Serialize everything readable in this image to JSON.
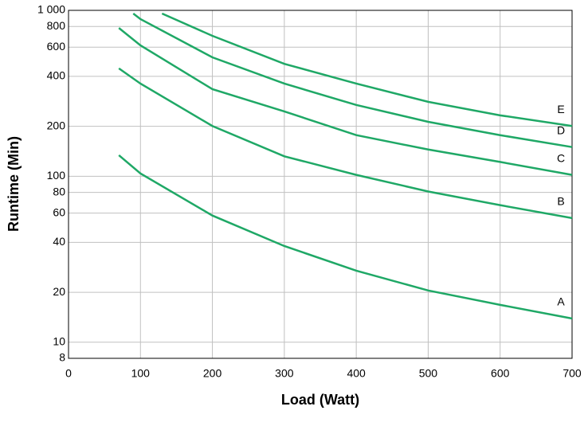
{
  "chart_data": {
    "type": "line",
    "xlabel": "Load (Watt)",
    "ylabel": "Runtime (Min)",
    "xlim": [
      0,
      700
    ],
    "xticks": [
      0,
      100,
      200,
      300,
      400,
      500,
      600,
      700
    ],
    "ylim": [
      8,
      1000
    ],
    "log_y": true,
    "yticks": [
      8,
      10,
      20,
      40,
      60,
      80,
      100,
      200,
      400,
      600,
      800,
      {
        "value": 1000,
        "label": "1 000"
      }
    ],
    "grid": true,
    "series": [
      {
        "name": "A",
        "color": "#1fa866",
        "x": [
          70,
          100,
          200,
          300,
          400,
          500,
          600,
          700
        ],
        "values": [
          134,
          104,
          58,
          38,
          27,
          20.5,
          16.8,
          13.9
        ]
      },
      {
        "name": "B",
        "color": "#1fa866",
        "x": [
          70,
          100,
          200,
          300,
          400,
          500,
          600,
          700
        ],
        "values": [
          447,
          362,
          201,
          132,
          102,
          81,
          67,
          56
        ]
      },
      {
        "name": "C",
        "color": "#1fa866",
        "x": [
          70,
          100,
          200,
          300,
          400,
          500,
          600,
          700
        ],
        "values": [
          783,
          615,
          335,
          246,
          177,
          145,
          122,
          102
        ]
      },
      {
        "name": "D",
        "color": "#1fa866",
        "x": [
          90,
          100,
          200,
          300,
          400,
          500,
          600,
          700
        ],
        "values": [
          957,
          886,
          521,
          362,
          269,
          213,
          177,
          150
        ]
      },
      {
        "name": "E",
        "color": "#1fa866",
        "x": [
          130,
          200,
          300,
          400,
          500,
          600,
          700
        ],
        "values": [
          957,
          702,
          476,
          362,
          281,
          233,
          201
        ]
      }
    ]
  }
}
